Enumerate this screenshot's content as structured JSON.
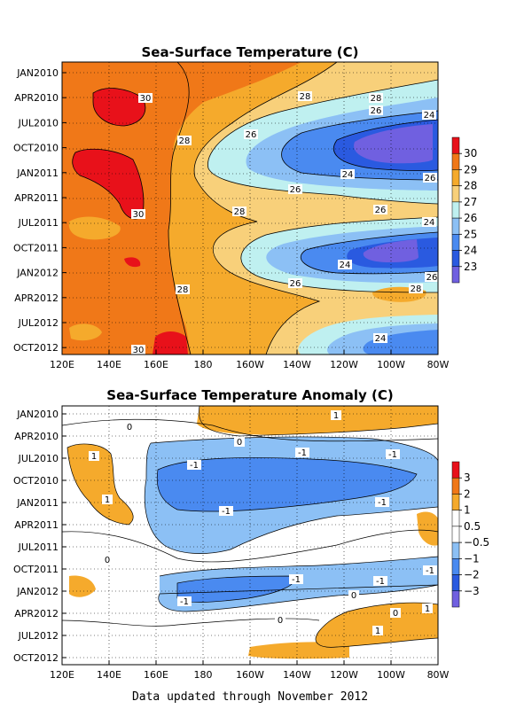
{
  "footer": "Data updated through November 2012",
  "chart_data": [
    {
      "type": "heatmap",
      "title": "Sea-Surface Temperature (C)",
      "xlabel": "",
      "ylabel": "",
      "x_ticks": [
        "120E",
        "140E",
        "160E",
        "180",
        "160W",
        "140W",
        "120W",
        "100W",
        "80W"
      ],
      "y_ticks": [
        "JAN2010",
        "APR2010",
        "JUL2010",
        "OCT2010",
        "JAN2011",
        "APR2011",
        "JUL2011",
        "OCT2011",
        "JAN2012",
        "APR2012",
        "JUL2012",
        "OCT2012"
      ],
      "xlim": [
        "120E",
        "80W"
      ],
      "ylim": [
        "JAN2010",
        "NOV2012"
      ],
      "colorbar": {
        "labels": [
          "30",
          "29",
          "28",
          "27",
          "26",
          "25",
          "24",
          "23"
        ],
        "colors": [
          "#e8111a",
          "#f07818",
          "#f5aa2c",
          "#f8d07a",
          "#bff0f0",
          "#8cc0f5",
          "#4a8af0",
          "#2a5ae0",
          "#7060e0"
        ]
      },
      "contour_labels": [
        "30",
        "28",
        "28",
        "28",
        "26",
        "24",
        "26",
        "24",
        "26",
        "30",
        "28",
        "26",
        "24",
        "26",
        "28",
        "24",
        "26",
        "28",
        "26",
        "30",
        "24"
      ],
      "grid": true
    },
    {
      "type": "heatmap",
      "title": "Sea-Surface Temperature Anomaly (C)",
      "xlabel": "",
      "ylabel": "",
      "x_ticks": [
        "120E",
        "140E",
        "160E",
        "180",
        "160W",
        "140W",
        "120W",
        "100W",
        "80W"
      ],
      "y_ticks": [
        "JAN2010",
        "APR2010",
        "JUL2010",
        "OCT2010",
        "JAN2011",
        "APR2011",
        "JUL2011",
        "OCT2011",
        "JAN2012",
        "APR2012",
        "JUL2012",
        "OCT2012"
      ],
      "xlim": [
        "120E",
        "80W"
      ],
      "ylim": [
        "JAN2010",
        "NOV2012"
      ],
      "colorbar": {
        "labels": [
          "3",
          "2",
          "1",
          "0.5",
          "−0.5",
          "−1",
          "−2",
          "−3"
        ],
        "colors": [
          "#e8111a",
          "#f07818",
          "#f5aa2c",
          "#ffffff",
          "#ffffff",
          "#8cc0f5",
          "#4a8af0",
          "#2a5ae0",
          "#7060e0"
        ]
      },
      "contour_labels": [
        "1",
        "0",
        "0",
        "-1",
        "1",
        "-1",
        "-1",
        "-1",
        "1",
        "-1",
        "-1",
        "0",
        "0",
        "-1",
        "-1",
        "-1",
        "0",
        "1",
        "0",
        "1"
      ],
      "grid": true
    }
  ]
}
